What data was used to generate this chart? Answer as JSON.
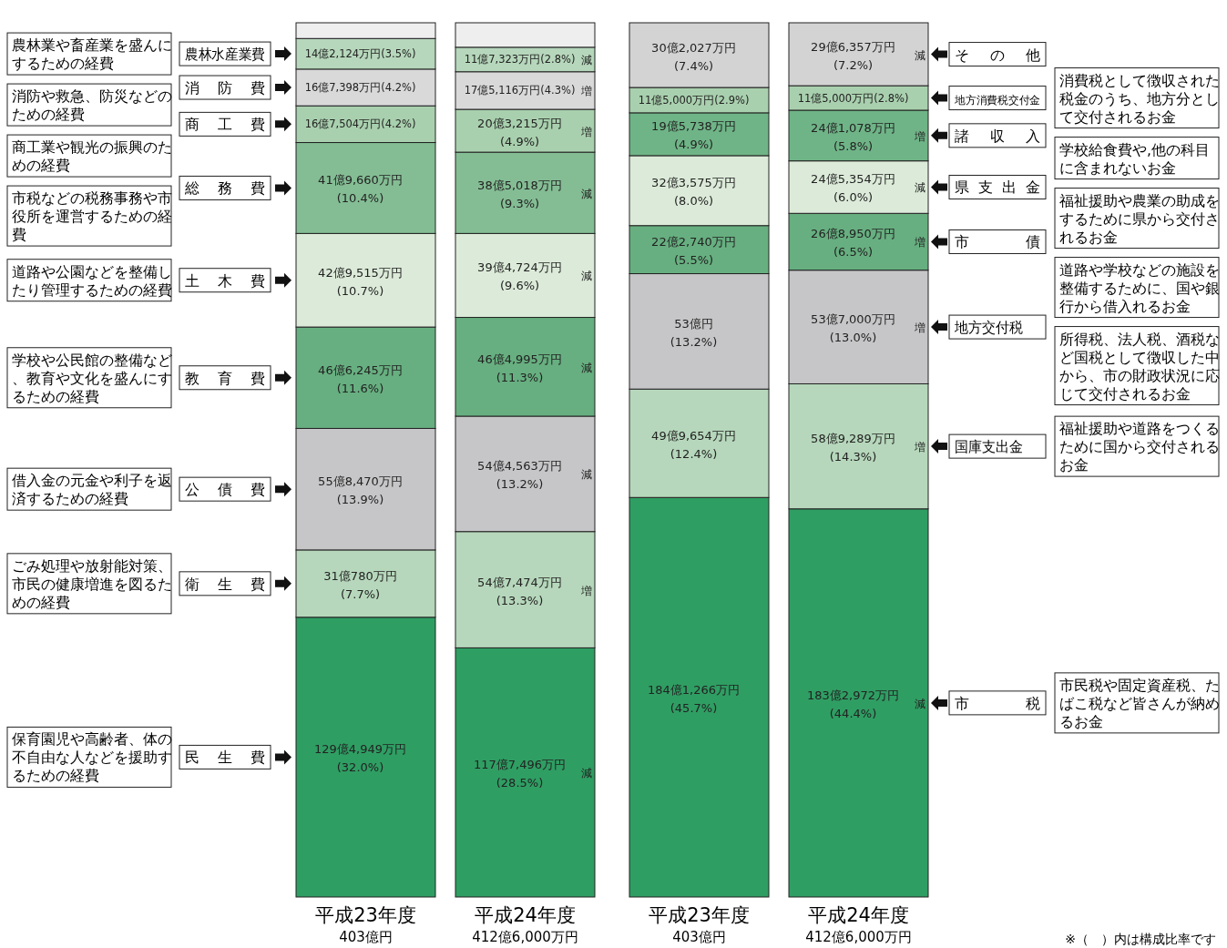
{
  "chart_data": [
    {
      "type": "bar",
      "stacked": true,
      "categories": [
        "平成23年度\n403億円",
        "平成24年度\n412億6,000万円"
      ],
      "ylim": [
        0,
        100
      ],
      "tick_labels": false,
      "legend": "left",
      "series": [
        {
          "name": "民生費",
          "color": "#2f9e63",
          "values": [
            32.0,
            28.5
          ],
          "value_labels": [
            "129億4,949万円(32.0%)",
            "117億7,496万円(28.5%) 減"
          ]
        },
        {
          "name": "衛生費",
          "color": "#b6d7bb",
          "values": [
            7.7,
            13.3
          ],
          "value_labels": [
            "31億780万円(7.7%)",
            "54億7,474万円(13.3%) 増"
          ]
        },
        {
          "name": "公債費",
          "color": "#c6c6c8",
          "values": [
            13.9,
            13.2
          ],
          "value_labels": [
            "55億8,470万円(13.9%)",
            "54億4,563万円(13.2%) 減"
          ]
        },
        {
          "name": "教育費",
          "color": "#67af80",
          "values": [
            11.6,
            11.3
          ],
          "value_labels": [
            "46億6,245万円(11.6%)",
            "46億4,995万円(11.3%) 減"
          ]
        },
        {
          "name": "土木費",
          "color": "#dcebd9",
          "values": [
            10.7,
            9.6
          ],
          "value_labels": [
            "42億9,515万円(10.7%)",
            "39億4,724万円(9.6%) 減"
          ]
        },
        {
          "name": "総務費",
          "color": "#84bd94",
          "values": [
            10.4,
            9.3
          ],
          "value_labels": [
            "41億9,660万円(10.4%)",
            "38億5,018万円(9.3%) 減"
          ]
        },
        {
          "name": "商工費",
          "color": "#a9d0ae",
          "values": [
            4.2,
            4.9
          ],
          "value_labels": [
            "16億7,504万円(4.2%)",
            "20億3,215万円(4.9%) 増"
          ]
        },
        {
          "name": "消防費",
          "color": "#d9d9da",
          "values": [
            4.2,
            4.3
          ],
          "value_labels": [
            "16億7,398万円(4.2%)",
            "17億5,116万円(4.3%) 増"
          ]
        },
        {
          "name": "農林水産業費",
          "color": "#b6d7bb",
          "values": [
            3.5,
            2.8
          ],
          "value_labels": [
            "14億2,124万円(3.5%)",
            "11億7,323万円(2.8%) 減"
          ]
        },
        {
          "color": "#eeeeef",
          "values": [
            1.8,
            2.8
          ]
        }
      ],
      "annotations": [
        "保育園児や高齢者、体の不自由な人などを援助するための経費",
        "ごみ処理や放射能対策、市民の健康増進を図るための経費",
        "借入金の元金や利子を返済するための経費",
        "学校や公民館の整備など、教育や文化を盛んにするための経費",
        "道路や公園などを整備したり管理するための経費",
        "市税などの税務事務や市役所を運営するための経費",
        "商工業や観光の振興のための経費",
        "消防や救急、防災などのための経費",
        "農林業や畜産業を盛んにするための経費"
      ]
    },
    {
      "type": "bar",
      "stacked": true,
      "categories": [
        "平成23年度\n403億円",
        "平成24年度\n412億6,000万円"
      ],
      "ylim": [
        0,
        100
      ],
      "tick_labels": false,
      "legend": "right",
      "series": [
        {
          "name": "市税",
          "color": "#2f9e63",
          "values": [
            45.7,
            44.4
          ],
          "value_labels": [
            "184億1,266万円(45.7%)",
            "183億2,972万円(44.4%) 減"
          ]
        },
        {
          "name": "国庫支出金",
          "color": "#b6d7bb",
          "values": [
            12.4,
            14.3
          ],
          "value_labels": [
            "49億9,654万円(12.4%)",
            "58億9,289万円(14.3%) 増"
          ]
        },
        {
          "name": "地方交付税",
          "color": "#c6c6c8",
          "values": [
            13.2,
            13.0
          ],
          "value_labels": [
            "53億円(13.2%)",
            "53億7,000万円(13.0%) 増"
          ]
        },
        {
          "name": "市債",
          "color": "#67af80",
          "values": [
            5.5,
            6.5
          ],
          "value_labels": [
            "22億2,740万円(5.5%)",
            "26億8,950万円(6.5%) 増"
          ]
        },
        {
          "name": "県支出金",
          "color": "#dcebd9",
          "values": [
            8.0,
            6.0
          ],
          "value_labels": [
            "32億3,575万円(8.0%)",
            "24億5,354万円(6.0%) 減"
          ]
        },
        {
          "name": "諸収入",
          "color": "#6fb487",
          "values": [
            4.9,
            5.8
          ],
          "value_labels": [
            "19億5,738万円(4.9%)",
            "24億1,078万円(5.8%) 増"
          ]
        },
        {
          "name": "地方消費税交付金",
          "color": "#a9d0ae",
          "values": [
            2.9,
            2.8
          ],
          "value_labels": [
            "11億5,000万円(2.9%)",
            "11億5,000万円(2.8%)"
          ]
        },
        {
          "name": "その他",
          "color": "#d3d3d4",
          "values": [
            7.4,
            7.2
          ],
          "value_labels": [
            "30億2,027万円(7.4%)",
            "29億6,357万円(7.2%) 減"
          ]
        }
      ],
      "annotations": [
        "市民税や固定資産税、たばこ税など皆さんが納めるお金",
        "福祉援助や道路をつくるために国から交付されるお金",
        "所得税、法人税、酒税など国税として徴収した中から、市の財政状況に応じて交付されるお金",
        "道路や学校などの施設を整備するために、国や銀行から借入れるお金",
        "福祉援助や農業の助成をするために県から交付されるお金",
        "学校給食費や,他の科目に含まれないお金",
        "消費税として徴収された税金のうち、地方分として交付されるお金",
        "※（　）内は構成比率です"
      ]
    }
  ]
}
